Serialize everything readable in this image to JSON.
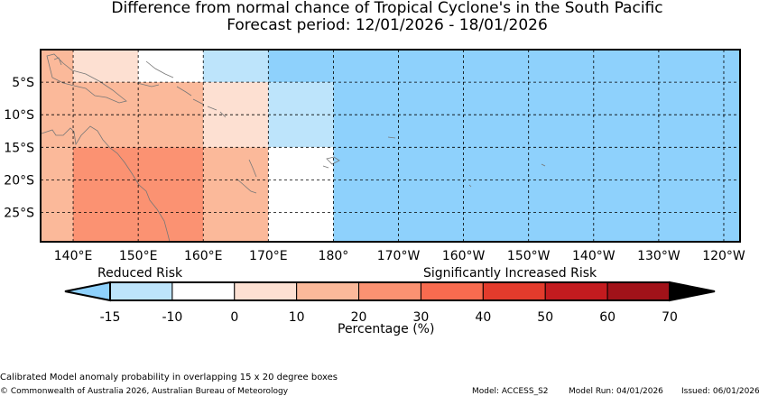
{
  "title": {
    "line1": "Difference from normal chance of Tropical Cyclone's in the South Pacific",
    "line2": "Forecast period: 12/01/2026 - 18/01/2026"
  },
  "map": {
    "lon_ticks": [
      "140°E",
      "150°E",
      "160°E",
      "170°E",
      "180°",
      "170°W",
      "160°W",
      "150°W",
      "140°W",
      "130°W",
      "120°W"
    ],
    "lat_ticks": [
      "5°S",
      "10°S",
      "15°S",
      "20°S",
      "25°S"
    ],
    "cells": [
      {
        "lon0": 135,
        "lon1": 140,
        "lat0": 0,
        "lat1": -5,
        "bin": "10-20"
      },
      {
        "lon0": 140,
        "lon1": 150,
        "lat0": 0,
        "lat1": -5,
        "bin": "0-10"
      },
      {
        "lon0": 150,
        "lon1": 160,
        "lat0": 0,
        "lat1": -5,
        "bin": "-10-0"
      },
      {
        "lon0": 160,
        "lon1": 170,
        "lat0": 0,
        "lat1": -5,
        "bin": "-15--10"
      },
      {
        "lon0": 170,
        "lon1": 245,
        "lat0": 0,
        "lat1": -5,
        "bin": "<-15"
      },
      {
        "lon0": 135,
        "lon1": 140,
        "lat0": -5,
        "lat1": -15,
        "bin": "10-20"
      },
      {
        "lon0": 140,
        "lon1": 160,
        "lat0": -5,
        "lat1": -15,
        "bin": "10-20"
      },
      {
        "lon0": 160,
        "lon1": 170,
        "lat0": -5,
        "lat1": -15,
        "bin": "0-10"
      },
      {
        "lon0": 170,
        "lon1": 180,
        "lat0": -5,
        "lat1": -10,
        "bin": "-15--10"
      },
      {
        "lon0": 170,
        "lon1": 180,
        "lat0": -10,
        "lat1": -15,
        "bin": "-15--10"
      },
      {
        "lon0": 180,
        "lon1": 245,
        "lat0": -5,
        "lat1": -30,
        "bin": "<-15"
      },
      {
        "lon0": 135,
        "lon1": 140,
        "lat0": -15,
        "lat1": -30,
        "bin": "10-20"
      },
      {
        "lon0": 140,
        "lon1": 160,
        "lat0": -15,
        "lat1": -30,
        "bin": "20-30"
      },
      {
        "lon0": 160,
        "lon1": 170,
        "lat0": -15,
        "lat1": -30,
        "bin": "10-20"
      },
      {
        "lon0": 170,
        "lon1": 180,
        "lat0": -15,
        "lat1": -30,
        "bin": "-10-0"
      }
    ]
  },
  "colorbar": {
    "reduced_label": "Reduced Risk",
    "increased_label": "Significantly Increased Risk",
    "axis_title": "Percentage (%)",
    "ticks": [
      "-15",
      "-10",
      "0",
      "10",
      "20",
      "30",
      "40",
      "50",
      "60",
      "70"
    ],
    "under_color": "#8ed1fc",
    "over_color": "#000000",
    "bins": [
      {
        "id": "-15--10",
        "color": "#bde4fb"
      },
      {
        "id": "-10-0",
        "color": "#ffffff"
      },
      {
        "id": "0-10",
        "color": "#fde0d2"
      },
      {
        "id": "10-20",
        "color": "#fbb99a"
      },
      {
        "id": "20-30",
        "color": "#fb9272"
      },
      {
        "id": "30-40",
        "color": "#f86b4f"
      },
      {
        "id": "40-50",
        "color": "#e33b2c"
      },
      {
        "id": "50-60",
        "color": "#c31b1f"
      },
      {
        "id": "60-70",
        "color": "#a11219"
      }
    ],
    "under_bin": {
      "id": "<-15",
      "color": "#8ed1fc"
    }
  },
  "footer": {
    "note": "Calibrated Model anomaly probability in overlapping 15 x 20 degree boxes",
    "copyright": "© Commonwealth of Australia 2026, Australian Bureau of Meteorology",
    "model": "Model: ACCESS_S2",
    "model_run": "Model Run: 04/01/2026",
    "issued": "Issued: 06/01/2026"
  }
}
